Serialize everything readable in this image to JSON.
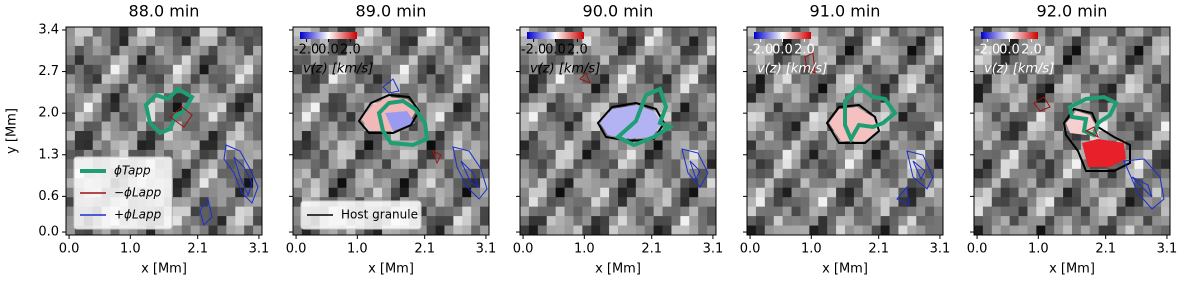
{
  "chart_data": [
    {
      "type": "image",
      "title": "88.0 min",
      "xlabel": "x [Mm]",
      "ylabel": "y [Mm]",
      "xlim": [
        -0.05,
        3.15
      ],
      "ylim": [
        -0.05,
        3.45
      ],
      "xticks": [
        {
          "value": 0,
          "label": "0.0"
        },
        {
          "value": 1,
          "label": "1.0"
        },
        2.1,
        3.1
      ],
      "yticks": [
        {
          "value": 0,
          "label": "0.0"
        },
        0.6,
        1.3,
        {
          "value": 2,
          "label": "2.0"
        },
        2.7,
        3.4
      ],
      "series": [
        {
          "name": "ϕTapp",
          "color": "#1f9e74"
        },
        {
          "name": "−ϕLapp",
          "color": "#a01010"
        },
        {
          "name": "+ϕLapp",
          "color": "#1a2fcf"
        }
      ]
    },
    {
      "type": "image",
      "title": "89.0 min",
      "xlabel": "x [Mm]",
      "xlim": [
        -0.05,
        3.15
      ],
      "ylim": [
        -0.05,
        3.45
      ],
      "xticks": [
        {
          "value": 0,
          "label": "0.0"
        },
        {
          "value": 1,
          "label": "1.0"
        },
        2.1,
        3.1
      ],
      "yticks": [
        {
          "value": 0,
          "label": "0.0"
        },
        0.6,
        1.3,
        {
          "value": 2,
          "label": "2.0"
        },
        2.7,
        3.4
      ],
      "series": [
        {
          "name": "Host granule",
          "color": "#000000"
        }
      ],
      "colorbar": {
        "label": "v(z) [km/s]",
        "lim": [
          -2.6,
          2.6
        ],
        "ticks": [
          {
            "value": -2,
            "label": "-2.0"
          },
          {
            "value": 0,
            "label": "0.0"
          },
          {
            "value": 2,
            "label": "2.0"
          }
        ],
        "text_color": "#000000"
      }
    },
    {
      "type": "image",
      "title": "90.0 min",
      "xlabel": "x [Mm]",
      "xlim": [
        -0.05,
        3.15
      ],
      "ylim": [
        -0.05,
        3.45
      ],
      "xticks": [
        {
          "value": 0,
          "label": "0.0"
        },
        {
          "value": 1,
          "label": "1.0"
        },
        2.1,
        3.1
      ],
      "yticks": [
        {
          "value": 0,
          "label": "0.0"
        },
        0.6,
        1.3,
        {
          "value": 2,
          "label": "2.0"
        },
        2.7,
        3.4
      ],
      "colorbar": {
        "label": "v(z) [km/s]",
        "lim": [
          -2.6,
          2.6
        ],
        "ticks": [
          {
            "value": -2,
            "label": "-2.0"
          },
          {
            "value": 0,
            "label": "0.0"
          },
          {
            "value": 2,
            "label": "2.0"
          }
        ],
        "text_color": "#000000"
      }
    },
    {
      "type": "image",
      "title": "91.0 min",
      "xlabel": "x [Mm]",
      "xlim": [
        -0.05,
        3.15
      ],
      "ylim": [
        -0.05,
        3.45
      ],
      "xticks": [
        {
          "value": 0,
          "label": "0.0"
        },
        {
          "value": 1,
          "label": "1.0"
        },
        2.1,
        3.1
      ],
      "yticks": [
        {
          "value": 0,
          "label": "0.0"
        },
        0.6,
        1.3,
        {
          "value": 2,
          "label": "2.0"
        },
        2.7,
        3.4
      ],
      "colorbar": {
        "label": "v(z) [km/s]",
        "lim": [
          -2.6,
          2.6
        ],
        "ticks": [
          {
            "value": -2,
            "label": "-2.0"
          },
          {
            "value": 0,
            "label": "0.0"
          },
          {
            "value": 2,
            "label": "2.0"
          }
        ],
        "text_color": "#ffffff"
      }
    },
    {
      "type": "image",
      "title": "92.0 min",
      "xlabel": "x [Mm]",
      "xlim": [
        -0.05,
        3.15
      ],
      "ylim": [
        -0.05,
        3.45
      ],
      "xticks": [
        {
          "value": 0,
          "label": "0.0"
        },
        {
          "value": 1,
          "label": "1.0"
        },
        2.1,
        3.1
      ],
      "yticks": [
        {
          "value": 0,
          "label": "0.0"
        },
        0.6,
        1.3,
        {
          "value": 2,
          "label": "2.0"
        },
        2.7,
        3.4
      ],
      "colorbar": {
        "label": "v(z) [km/s]",
        "lim": [
          -2.6,
          2.6
        ],
        "ticks": [
          {
            "value": -2,
            "label": "-2.0"
          },
          {
            "value": 0,
            "label": "0.0"
          },
          {
            "value": 2,
            "label": "2.0"
          }
        ],
        "text_color": "#ffffff"
      }
    }
  ]
}
